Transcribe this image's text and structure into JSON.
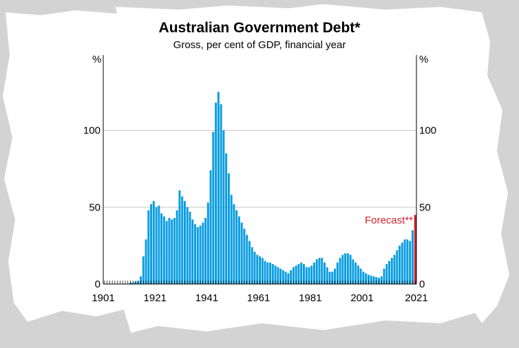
{
  "chart_data": {
    "type": "bar",
    "title": "Australian Government Debt*",
    "subtitle": "Gross, per cent of GDP, financial year",
    "ylabel_left": "%",
    "ylabel_right": "%",
    "ylim": [
      0,
      130
    ],
    "yticks": [
      0,
      50,
      100
    ],
    "xticks": [
      "1901",
      "1921",
      "1941",
      "1961",
      "1981",
      "2001",
      "2021"
    ],
    "x_start": 1901,
    "x_end": 2021,
    "grid": "horizontal",
    "annotation": "Forecast**",
    "forecast_year": 2021,
    "colors": {
      "bar": "#0a9de0",
      "bar_gap": "#6cc6f0",
      "forecast": "#d3232f",
      "grid": "#c8c8c8"
    },
    "values": [
      null,
      null,
      null,
      null,
      null,
      null,
      null,
      null,
      null,
      null,
      1,
      1,
      1.5,
      2,
      5,
      18,
      29,
      48,
      52,
      54,
      50,
      51,
      46,
      44,
      41,
      43,
      42,
      43,
      48,
      61,
      57,
      54,
      50,
      47,
      42,
      39,
      37,
      38,
      40,
      43,
      53,
      74,
      99,
      118,
      125,
      117,
      100,
      85,
      72,
      58,
      52,
      48,
      44,
      40,
      36,
      32,
      28,
      24,
      21,
      19,
      18,
      17,
      15,
      14,
      14,
      13,
      12,
      11,
      10,
      9,
      8,
      7,
      9,
      11,
      12,
      13,
      14,
      13,
      11,
      11,
      12,
      14,
      16,
      17,
      17,
      14,
      11,
      8,
      8,
      10,
      14,
      17,
      19,
      20,
      20,
      19,
      16,
      14,
      12,
      10,
      8,
      7,
      6,
      5.5,
      5,
      4.5,
      4,
      5,
      10,
      13,
      15,
      17,
      19,
      22,
      25,
      27,
      29,
      29,
      28,
      35,
      45
    ]
  }
}
